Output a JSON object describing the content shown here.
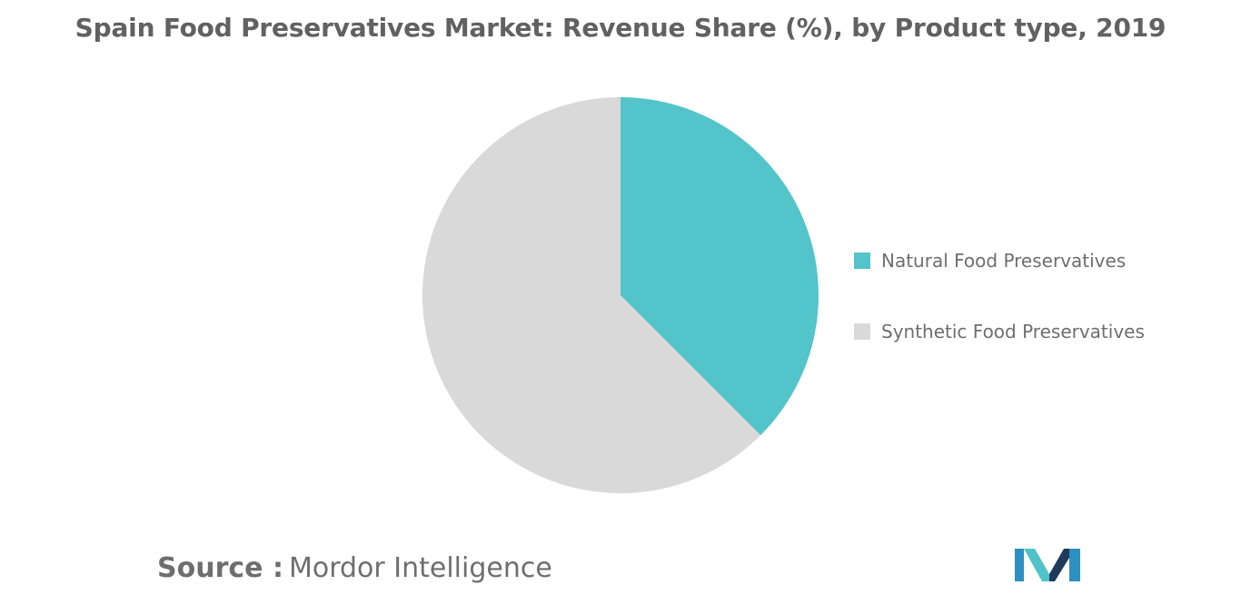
{
  "title": "Spain Food Preservatives Market: Revenue Share (%), by Product type, 2019",
  "source": {
    "label": "Source :",
    "value": "Mordor Intelligence"
  },
  "logo": {
    "icon": "mordor-intelligence-logo",
    "colors": [
      "#1f3b5c",
      "#2e8fc1",
      "#4fc3c9"
    ]
  },
  "chart_data": {
    "type": "pie",
    "title": "Spain Food Preservatives Market: Revenue Share (%), by Product type, 2019",
    "series": [
      {
        "name": "Natural Food Preservatives",
        "value": 37.5,
        "color": "#52c4ca"
      },
      {
        "name": "Synthetic Food Preservatives",
        "value": 62.5,
        "color": "#d9d9d9"
      }
    ],
    "legend_position": "right"
  }
}
